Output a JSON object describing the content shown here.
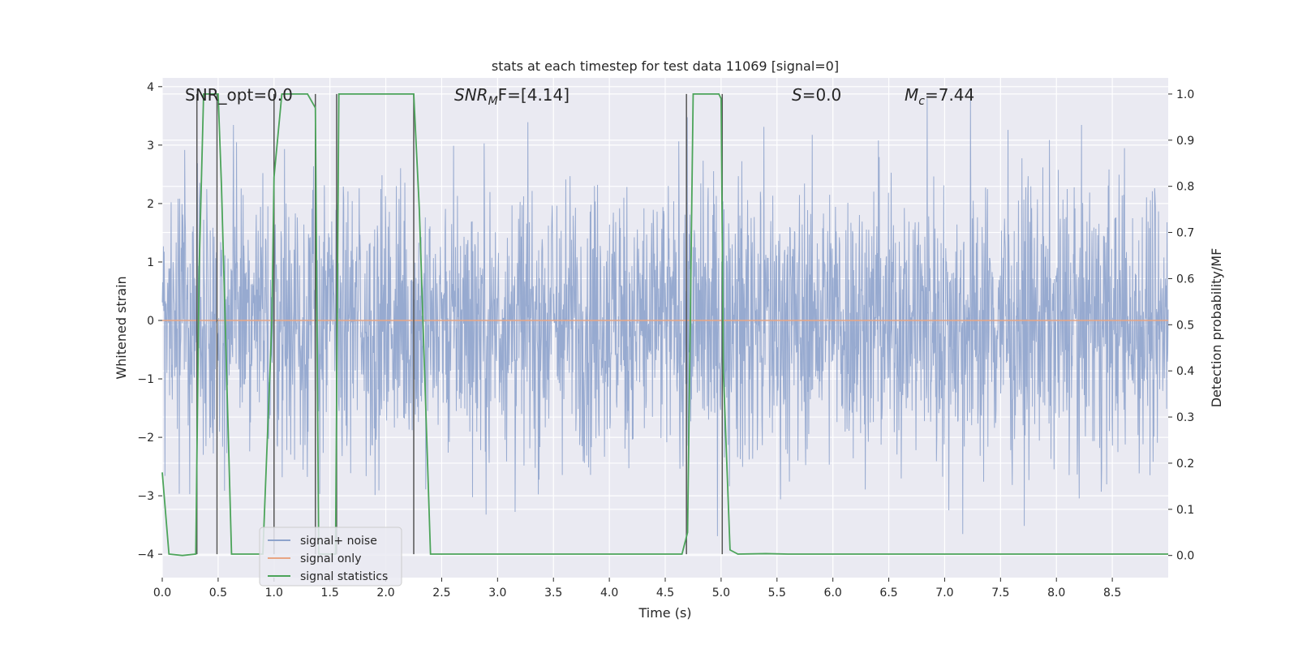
{
  "chart_data": {
    "type": "line",
    "title": "stats at each timestep for test data 11069 [signal=0]",
    "xlabel": "Time (s)",
    "ylabel_left": "Whitened strain",
    "ylabel_right": "Detection probability/MF",
    "xlim": [
      0,
      9.0
    ],
    "ylim_left": [
      -4.4,
      4.15
    ],
    "ylim_right": [
      -0.048,
      1.035
    ],
    "x_ticks": [
      0.0,
      0.5,
      1.0,
      1.5,
      2.0,
      2.5,
      3.0,
      3.5,
      4.0,
      4.5,
      5.0,
      5.5,
      6.0,
      6.5,
      7.0,
      7.5,
      8.0,
      8.5
    ],
    "x_tick_labels": [
      "0.0",
      "0.5",
      "1.0",
      "1.5",
      "2.0",
      "2.5",
      "3.0",
      "3.5",
      "4.0",
      "4.5",
      "5.0",
      "5.5",
      "6.0",
      "6.5",
      "7.0",
      "7.5",
      "8.0",
      "8.5"
    ],
    "y_left_ticks": [
      -4,
      -3,
      -2,
      -1,
      0,
      1,
      2,
      3,
      4
    ],
    "y_left_tick_labels": [
      "−4",
      "−3",
      "−2",
      "−1",
      "0",
      "1",
      "2",
      "3",
      "4"
    ],
    "y_right_ticks": [
      0.0,
      0.1,
      0.2,
      0.3,
      0.4,
      0.5,
      0.6,
      0.7,
      0.8,
      0.9,
      1.0
    ],
    "y_right_tick_labels": [
      "0.0",
      "0.1",
      "0.2",
      "0.3",
      "0.4",
      "0.5",
      "0.6",
      "0.7",
      "0.8",
      "0.9",
      "1.0"
    ],
    "grid": true,
    "legend_position": "lower-left",
    "legend": [
      {
        "label": "signal+ noise",
        "color": "#8ea3cc"
      },
      {
        "label": "signal only",
        "color": "#e8a583"
      },
      {
        "label": "signal statistics",
        "color": "#4ca45a"
      }
    ],
    "annotations": [
      {
        "kind": "plain",
        "text": "SNR_opt=0.0"
      },
      {
        "kind": "italic-sub",
        "main": "SNR",
        "sub": "M",
        "rest": "F=[4.14]"
      },
      {
        "kind": "italic",
        "main": "S",
        "rest": "=0.0"
      },
      {
        "kind": "italic-sub",
        "main": "M",
        "sub": "c",
        "rest": "=7.44"
      }
    ],
    "series": [
      {
        "name": "signal+ noise",
        "color": "#8ea3cc",
        "description_level": "dense noise, envelope approx ±2 with spikes to about ±3.8",
        "envelope": [
          -3.8,
          3.8
        ]
      },
      {
        "name": "signal only",
        "color": "#e8a583",
        "x": [
          0.0,
          9.0
        ],
        "y": [
          0.0,
          0.0
        ]
      },
      {
        "name": "signal statistics",
        "color": "#4ca45a",
        "x": [
          0.0,
          0.06,
          0.18,
          0.3,
          0.33,
          0.37,
          0.5,
          0.53,
          0.62,
          0.9,
          0.98,
          1.0,
          1.07,
          1.3,
          1.37,
          1.4,
          1.55,
          1.58,
          2.25,
          2.3,
          2.4,
          4.65,
          4.7,
          4.75,
          4.98,
          5.0,
          5.02,
          5.08,
          5.15,
          5.4,
          5.6,
          9.0
        ],
        "y": [
          0.18,
          0.003,
          0.0,
          0.003,
          0.62,
          1.0,
          1.0,
          0.8,
          0.003,
          0.003,
          0.5,
          0.82,
          1.0,
          1.0,
          0.97,
          0.003,
          0.003,
          1.0,
          1.0,
          0.75,
          0.003,
          0.003,
          0.05,
          1.0,
          1.0,
          0.99,
          0.4,
          0.012,
          0.003,
          0.004,
          0.003,
          0.003
        ]
      }
    ],
    "vertical_markers": [
      {
        "x": 0.31,
        "y_top": 1.0
      },
      {
        "x": 0.49,
        "y_top": 1.0
      },
      {
        "x": 1.0,
        "y_top": 1.0
      },
      {
        "x": 1.37,
        "y_top": 1.0
      },
      {
        "x": 1.56,
        "y_top": 1.0
      },
      {
        "x": 2.25,
        "y_top": 1.0
      },
      {
        "x": 4.69,
        "y_top": 1.0
      },
      {
        "x": 5.01,
        "y_top": 1.0
      }
    ]
  }
}
